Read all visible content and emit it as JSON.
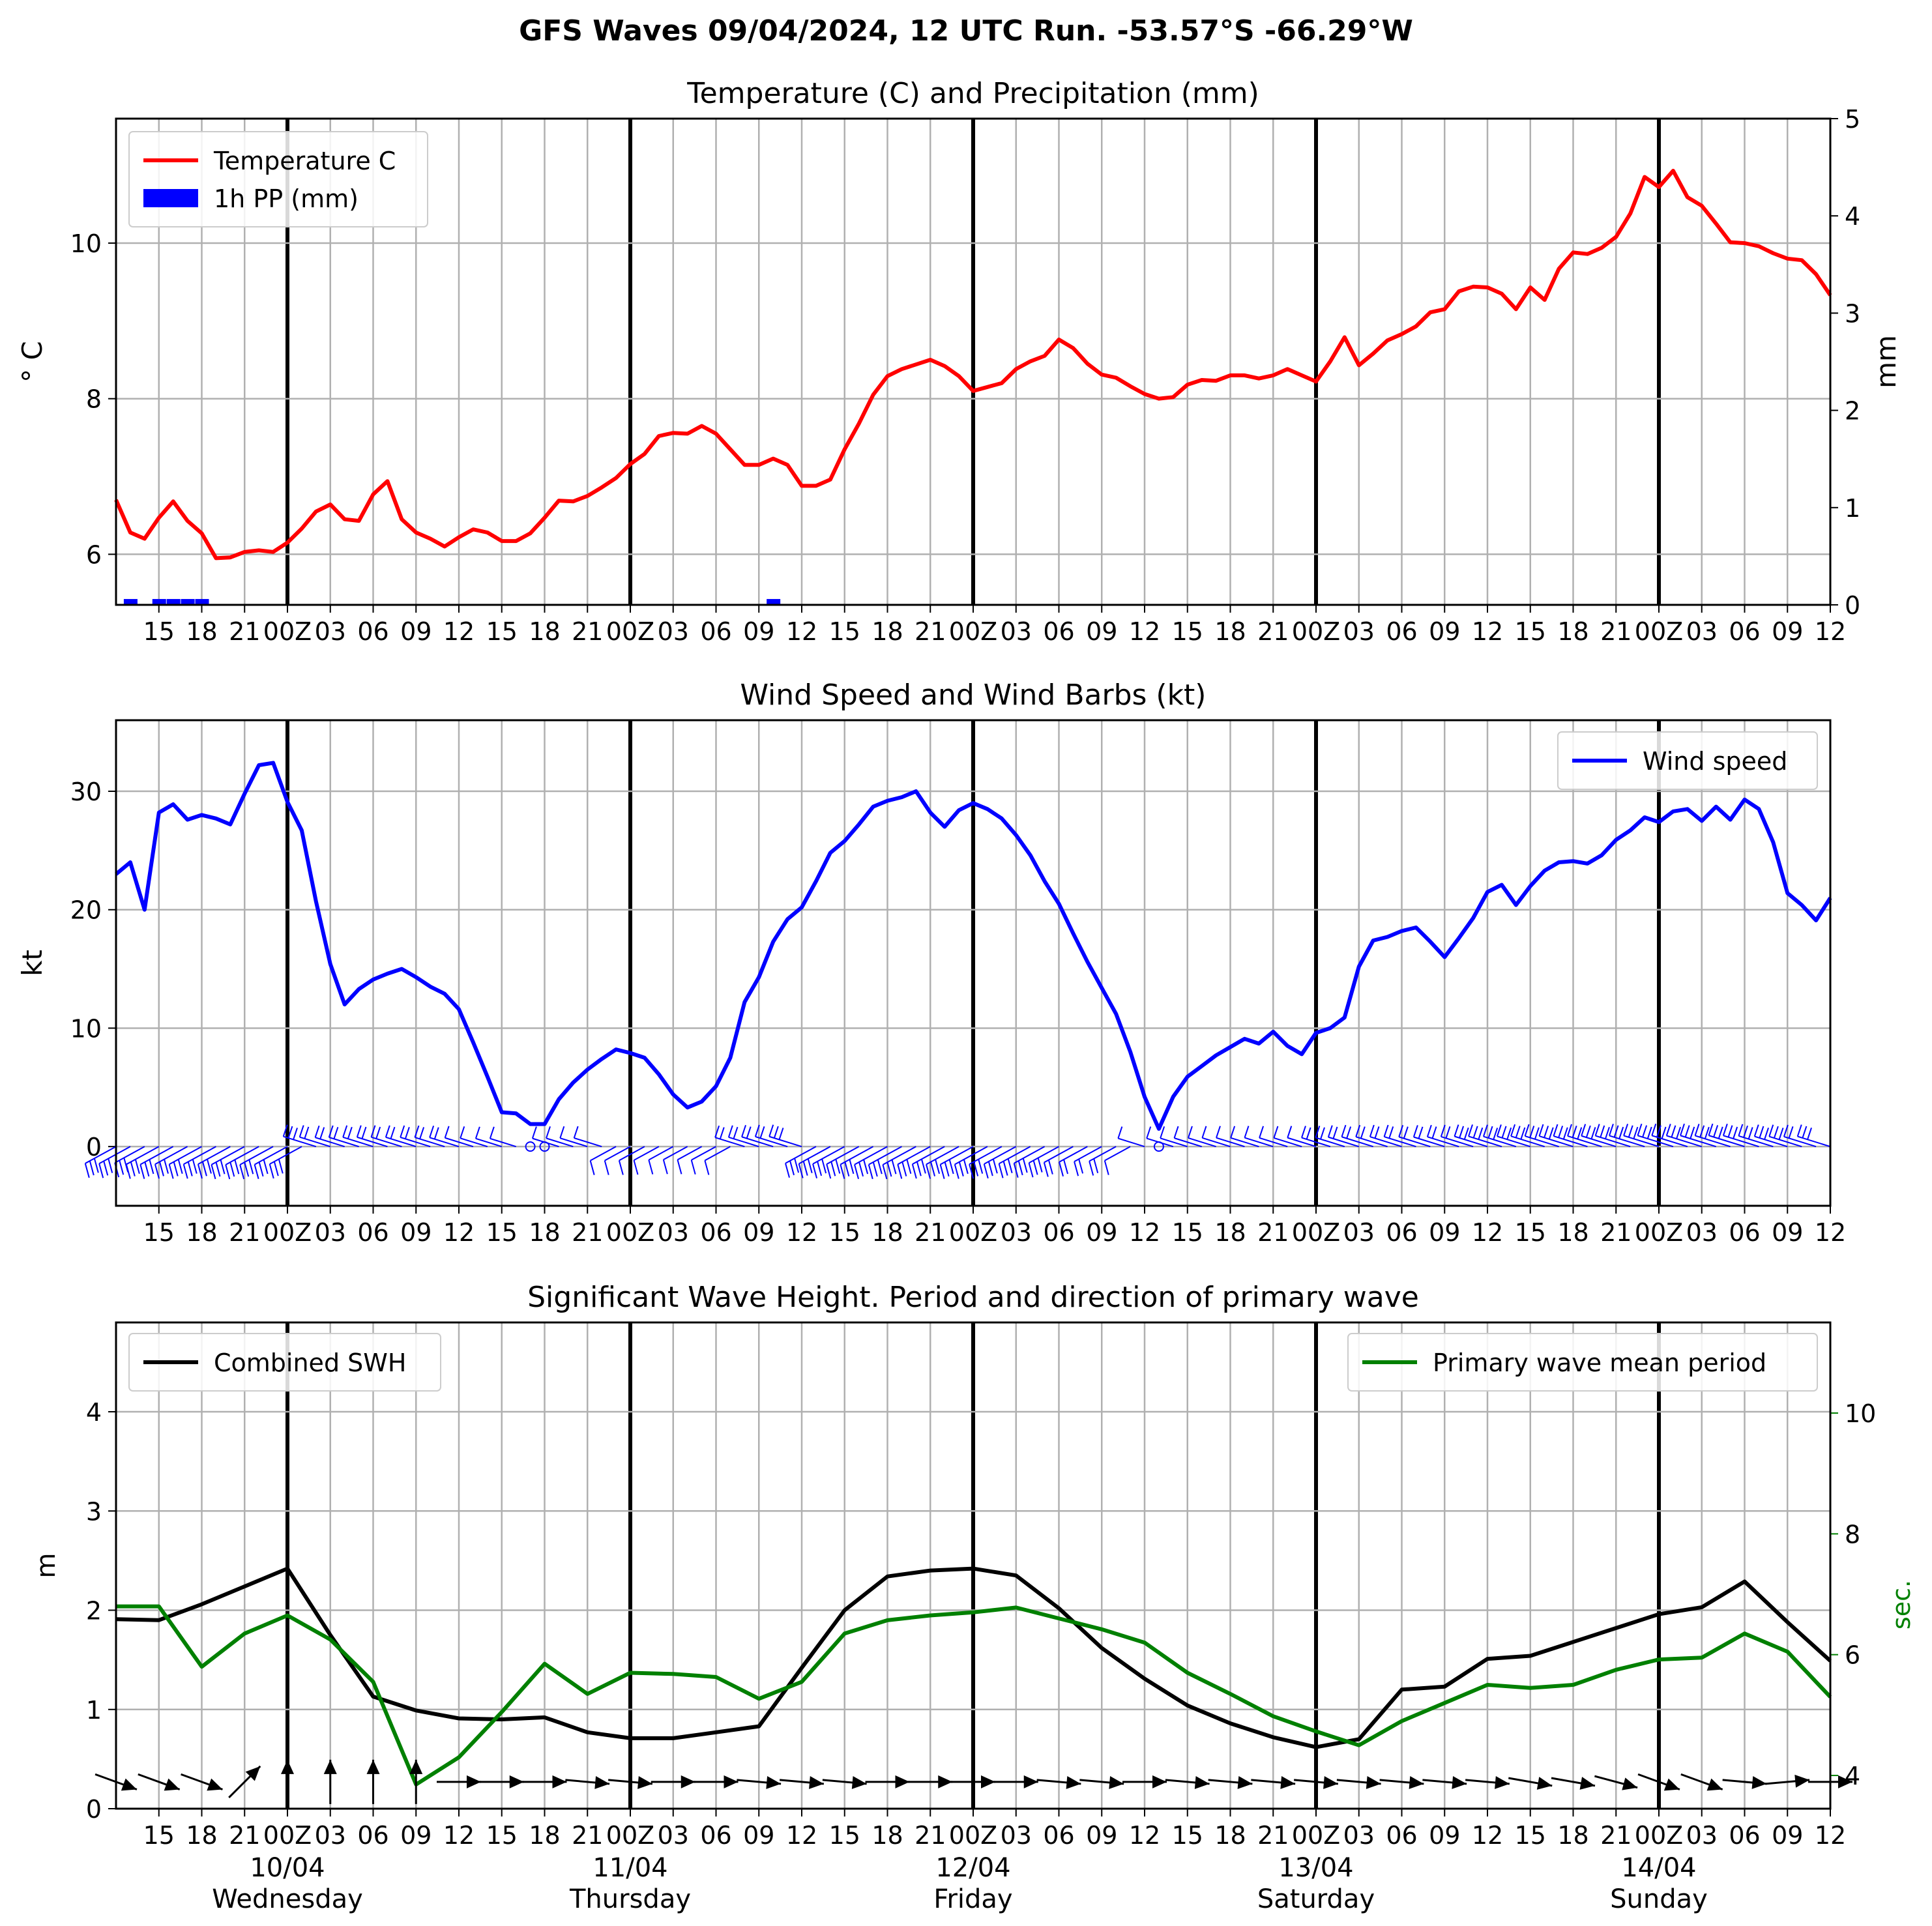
{
  "figure_title": "GFS Waves 09/04/2024, 12 UTC Run. -53.57°S -66.29°W",
  "x_ticks": [
    "15",
    "18",
    "21",
    "00Z",
    "03",
    "06",
    "09",
    "12",
    "15",
    "18",
    "21",
    "00Z",
    "03",
    "06",
    "09",
    "12",
    "15",
    "18",
    "21",
    "00Z",
    "03",
    "06",
    "09",
    "12",
    "15",
    "18",
    "21",
    "00Z",
    "03",
    "06",
    "09",
    "12",
    "15",
    "18",
    "21",
    "00Z",
    "03",
    "06",
    "09",
    "12"
  ],
  "day_labels": [
    {
      "date": "10/04",
      "day": "Wednesday"
    },
    {
      "date": "11/04",
      "day": "Thursday"
    },
    {
      "date": "12/04",
      "day": "Friday"
    },
    {
      "date": "13/04",
      "day": "Saturday"
    },
    {
      "date": "14/04",
      "day": "Sunday"
    }
  ],
  "colors": {
    "temperature": "#ff0000",
    "precip": "#0000ff",
    "wind": "#0000ff",
    "swh": "#000000",
    "period": "#008000",
    "grid": "#b0b0b0"
  },
  "chart_data": [
    {
      "type": "line",
      "title": "Temperature (C) and Precipitation (mm)",
      "x_unit": "hours since 09/04 12 UTC",
      "xlim": [
        0,
        120
      ],
      "ylabel": "° C",
      "ylim": [
        5.35,
        11.6
      ],
      "yticks": [
        6,
        8,
        10
      ],
      "y2label": "mm",
      "y2lim": [
        0,
        5
      ],
      "y2ticks": [
        0,
        1,
        2,
        3,
        4,
        5
      ],
      "legend": "top-left",
      "grid": true,
      "series": [
        {
          "name": "Temperature C",
          "axis": "left",
          "x": [
            0,
            1,
            2,
            3,
            4,
            5,
            6,
            7,
            8,
            9,
            10,
            11,
            12,
            13,
            14,
            15,
            16,
            17,
            18,
            19,
            20,
            21,
            22,
            23,
            24,
            25,
            26,
            27,
            28,
            29,
            30,
            31,
            32,
            33,
            34,
            35,
            36,
            37,
            38,
            39,
            40,
            41,
            42,
            43,
            44,
            45,
            46,
            47,
            48,
            49,
            50,
            51,
            52,
            53,
            54,
            55,
            56,
            57,
            58,
            59,
            60,
            61,
            62,
            63,
            64,
            65,
            66,
            67,
            68,
            69,
            70,
            71,
            72,
            73,
            74,
            75,
            76,
            77,
            78,
            79,
            80,
            81,
            82,
            83,
            84,
            85,
            86,
            87,
            88,
            89,
            90,
            91,
            92,
            93,
            94,
            95,
            96,
            97,
            98,
            99,
            100,
            101,
            102,
            103,
            104,
            105,
            106,
            107,
            108,
            109,
            110,
            111,
            112,
            113,
            114,
            115,
            116,
            117,
            118,
            119,
            120
          ],
          "y": [
            6.7,
            6.28,
            6.2,
            6.47,
            6.68,
            6.43,
            6.27,
            5.95,
            5.96,
            6.03,
            6.05,
            6.03,
            6.15,
            6.33,
            6.55,
            6.64,
            6.45,
            6.43,
            6.77,
            6.94,
            6.45,
            6.28,
            6.2,
            6.1,
            6.22,
            6.32,
            6.28,
            6.17,
            6.17,
            6.27,
            6.47,
            6.69,
            6.68,
            6.75,
            6.86,
            6.98,
            7.16,
            7.29,
            7.52,
            7.56,
            7.55,
            7.65,
            7.55,
            7.35,
            7.15,
            7.15,
            7.23,
            7.15,
            6.88,
            6.88,
            6.96,
            7.35,
            7.68,
            8.05,
            8.29,
            8.38,
            8.44,
            8.5,
            8.42,
            8.29,
            8.1,
            8.15,
            8.2,
            8.38,
            8.48,
            8.55,
            8.76,
            8.65,
            8.45,
            8.31,
            8.27,
            8.16,
            8.06,
            8.0,
            8.02,
            8.18,
            8.24,
            8.23,
            8.3,
            8.3,
            8.26,
            8.3,
            8.38,
            8.3,
            8.22,
            8.48,
            8.79,
            8.43,
            8.58,
            8.75,
            8.83,
            8.93,
            9.11,
            9.15,
            9.38,
            9.44,
            9.43,
            9.35,
            9.15,
            9.43,
            9.27,
            9.67,
            9.88,
            9.86,
            9.94,
            10.08,
            10.38,
            10.85,
            10.72,
            10.93,
            10.59,
            10.48,
            10.25,
            10.01,
            10.0,
            9.96,
            9.87,
            9.8,
            9.78,
            9.6,
            9.33
          ]
        },
        {
          "name": "1h PP (mm)",
          "axis": "right",
          "type": "bar",
          "x": [
            1,
            3,
            4,
            5,
            6,
            46
          ],
          "y": [
            0.06,
            0.06,
            0.06,
            0.06,
            0.06,
            0.06
          ]
        }
      ]
    },
    {
      "type": "line",
      "title": "Wind Speed and Wind Barbs (kt)",
      "x_unit": "hours since 09/04 12 UTC",
      "xlim": [
        0,
        120
      ],
      "ylabel": "kt",
      "ylim": [
        -5,
        36
      ],
      "yticks": [
        0,
        10,
        20,
        30
      ],
      "legend": "top-right",
      "grid": true,
      "series": [
        {
          "name": "Wind speed",
          "x": [
            0,
            1,
            2,
            3,
            4,
            5,
            6,
            7,
            8,
            9,
            10,
            11,
            12,
            13,
            14,
            15,
            16,
            17,
            18,
            19,
            20,
            21,
            22,
            23,
            24,
            25,
            26,
            27,
            28,
            29,
            30,
            31,
            32,
            33,
            34,
            35,
            36,
            37,
            38,
            39,
            40,
            41,
            42,
            43,
            44,
            45,
            46,
            47,
            48,
            49,
            50,
            51,
            52,
            53,
            54,
            55,
            56,
            57,
            58,
            59,
            60,
            61,
            62,
            63,
            64,
            65,
            66,
            67,
            68,
            69,
            70,
            71,
            72,
            73,
            74,
            75,
            76,
            77,
            78,
            79,
            80,
            81,
            82,
            83,
            84,
            85,
            86,
            87,
            88,
            89,
            90,
            91,
            92,
            93,
            94,
            95,
            96,
            97,
            98,
            99,
            100,
            101,
            102,
            103,
            104,
            105,
            106,
            107,
            108,
            109,
            110,
            111,
            112,
            113,
            114,
            115,
            116,
            117,
            118,
            119,
            120
          ],
          "y": [
            23,
            24,
            20,
            28.2,
            28.9,
            27.6,
            28,
            27.7,
            27.2,
            29.8,
            32.2,
            32.4,
            29.1,
            26.7,
            20.7,
            15.4,
            12,
            13.3,
            14.1,
            14.6,
            15,
            14.3,
            13.5,
            12.9,
            11.6,
            8.8,
            5.9,
            2.9,
            2.8,
            1.9,
            1.9,
            4,
            5.4,
            6.5,
            7.4,
            8.2,
            7.9,
            7.5,
            6.1,
            4.4,
            3.3,
            3.8,
            5.1,
            7.5,
            12.2,
            14.3,
            17.3,
            19.2,
            20.2,
            22.4,
            24.8,
            25.8,
            27.2,
            28.7,
            29.2,
            29.5,
            30,
            28.2,
            27,
            28.4,
            29,
            28.5,
            27.7,
            26.3,
            24.6,
            22.4,
            20.5,
            18,
            15.6,
            13.4,
            11.2,
            8,
            4.2,
            1.5,
            4.2,
            5.9,
            6.8,
            7.7,
            8.4,
            9.1,
            8.7,
            9.7,
            8.5,
            7.8,
            9.6,
            10,
            10.9,
            15.2,
            17.4,
            17.7,
            18.2,
            18.5,
            17.3,
            16,
            17.6,
            19.3,
            21.5,
            22.1,
            20.4,
            22,
            23.3,
            24,
            24.1,
            23.9,
            24.6,
            25.9,
            26.7,
            27.8,
            27.4,
            28.3,
            28.5,
            27.5,
            28.7,
            27.6,
            29.3,
            28.5,
            25.7,
            21.4,
            20.4,
            19.1,
            21
          ]
        }
      ]
    },
    {
      "type": "line",
      "title": "Significant Wave Height. Period and direction of primary wave",
      "x_unit": "hours since 09/04 12 UTC",
      "xlim": [
        0,
        120
      ],
      "ylabel": "m",
      "ylim": [
        0,
        4.9
      ],
      "yticks": [
        0,
        1,
        2,
        3,
        4
      ],
      "y2label": "sec.",
      "y2lim": [
        3.45,
        11.5
      ],
      "y2ticks": [
        4,
        6,
        8,
        10
      ],
      "legend": "top-left and top-right",
      "grid": true,
      "series": [
        {
          "name": "Combined SWH",
          "axis": "left",
          "x": [
            0,
            3,
            6,
            9,
            12,
            15,
            18,
            21,
            24,
            27,
            30,
            33,
            36,
            39,
            42,
            45,
            48,
            51,
            54,
            57,
            60,
            63,
            66,
            69,
            72,
            75,
            78,
            81,
            84,
            87,
            90,
            93,
            96,
            99,
            102,
            105,
            108,
            111,
            114,
            117,
            120
          ],
          "y": [
            1.91,
            1.9,
            2.06,
            2.24,
            2.42,
            1.75,
            1.13,
            0.99,
            0.91,
            0.9,
            0.92,
            0.77,
            0.71,
            0.71,
            0.77,
            0.83,
            1.42,
            2.0,
            2.34,
            2.4,
            2.42,
            2.35,
            2.02,
            1.62,
            1.31,
            1.04,
            0.86,
            0.72,
            0.62,
            0.7,
            1.2,
            1.23,
            1.51,
            1.54,
            1.68,
            1.82,
            1.96,
            2.03,
            2.29,
            1.88,
            1.49
          ]
        },
        {
          "name": "Primary wave mean period",
          "axis": "right",
          "x": [
            0,
            3,
            6,
            9,
            12,
            15,
            18,
            21,
            24,
            27,
            30,
            33,
            36,
            39,
            42,
            45,
            48,
            51,
            54,
            57,
            60,
            63,
            66,
            69,
            72,
            75,
            78,
            81,
            84,
            87,
            90,
            93,
            96,
            99,
            102,
            105,
            108,
            111,
            114,
            117,
            120
          ],
          "y": [
            6.8,
            6.8,
            5.8,
            6.35,
            6.65,
            6.25,
            5.55,
            3.85,
            4.3,
            5.05,
            5.85,
            5.35,
            5.7,
            5.68,
            5.63,
            5.27,
            5.55,
            6.35,
            6.57,
            6.65,
            6.7,
            6.78,
            6.6,
            6.42,
            6.2,
            5.7,
            5.35,
            4.98,
            4.73,
            4.5,
            4.9,
            5.2,
            5.5,
            5.45,
            5.5,
            5.75,
            5.92,
            5.95,
            6.35,
            6.05,
            5.3
          ]
        }
      ],
      "wave_direction_arrows": {
        "x": [
          0,
          3,
          6,
          9,
          12,
          15,
          18,
          21,
          24,
          27,
          30,
          33,
          36,
          39,
          42,
          45,
          48,
          51,
          54,
          57,
          60,
          63,
          66,
          69,
          72,
          75,
          78,
          81,
          84,
          87,
          90,
          93,
          96,
          99,
          102,
          105,
          108,
          111,
          114,
          117,
          120
        ],
        "to_direction_deg": [
          110,
          110,
          110,
          45,
          0,
          0,
          0,
          0,
          90,
          90,
          90,
          95,
          95,
          90,
          90,
          95,
          95,
          95,
          90,
          90,
          90,
          90,
          95,
          95,
          90,
          95,
          95,
          95,
          95,
          95,
          95,
          95,
          95,
          100,
          100,
          105,
          110,
          110,
          95,
          85,
          90
        ]
      }
    }
  ]
}
